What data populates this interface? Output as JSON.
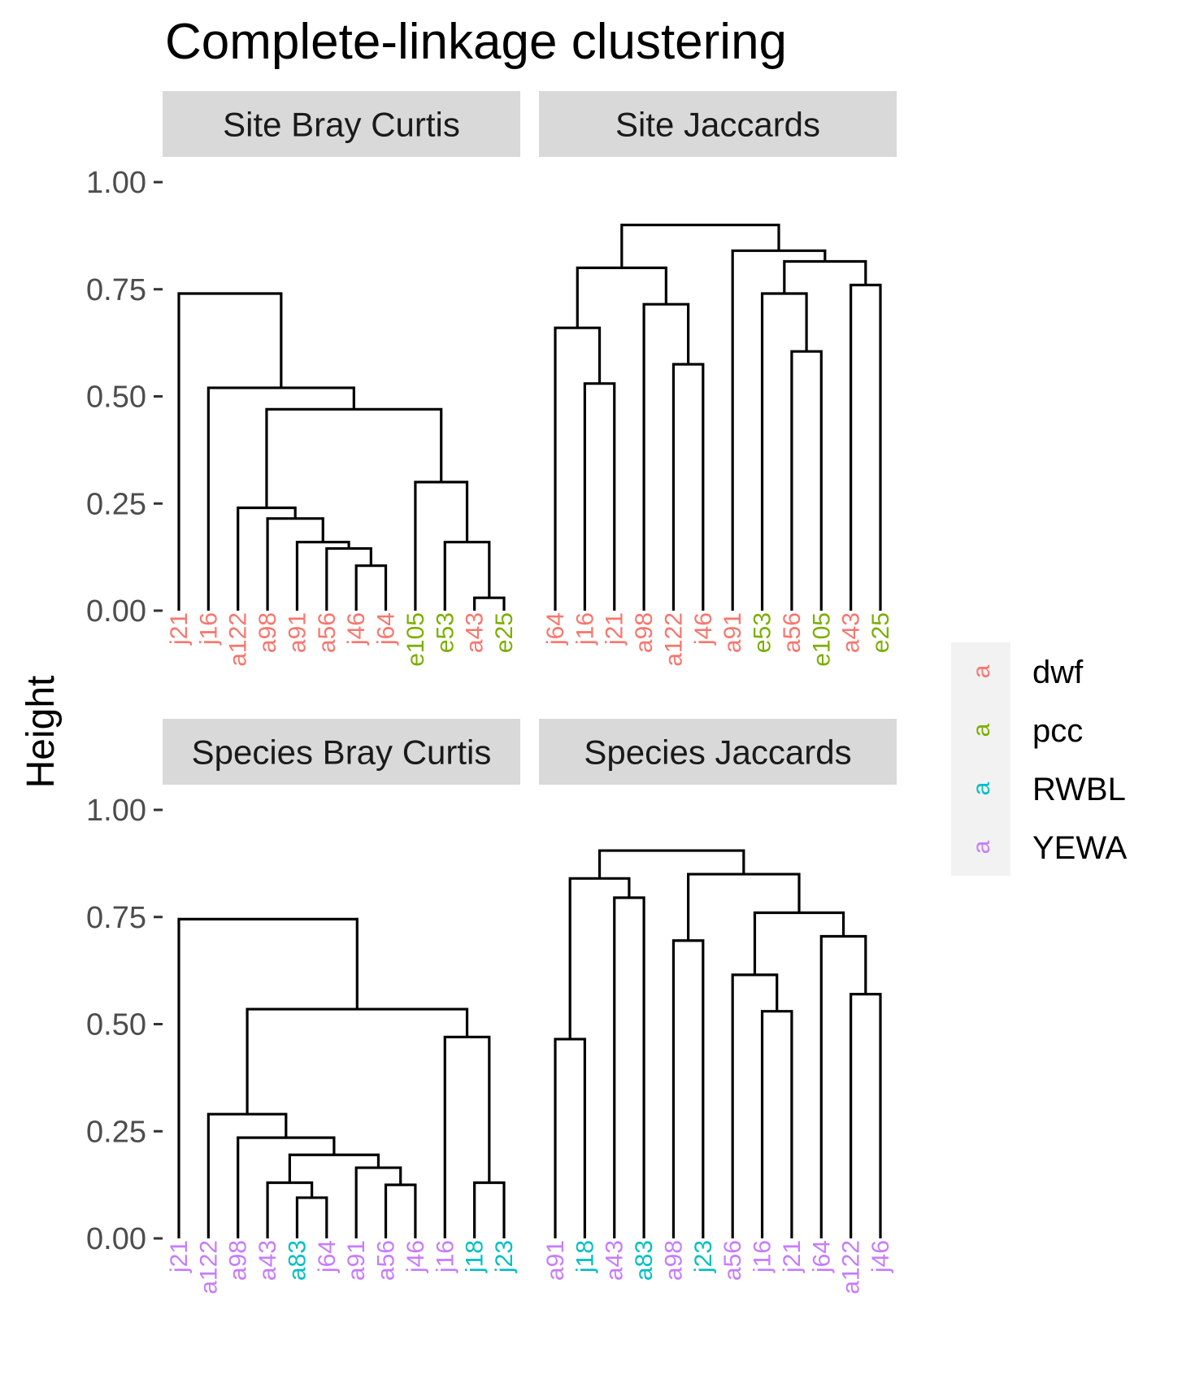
{
  "title": "Complete-linkage clustering",
  "ylabel": "Height",
  "colors": {
    "dwf": "#F8766D",
    "pcc": "#7CAE00",
    "RWBL": "#00BFC4",
    "YEWA": "#C77CFF"
  },
  "legend": {
    "key_glyph": "a",
    "entries": [
      {
        "label": "dwf",
        "color": "#F8766D"
      },
      {
        "label": "pcc",
        "color": "#7CAE00"
      },
      {
        "label": "RWBL",
        "color": "#00BFC4"
      },
      {
        "label": "YEWA",
        "color": "#C77CFF"
      }
    ]
  },
  "chart_data": [
    {
      "type": "dendrogram",
      "panel": "Site Bray Curtis",
      "ylim": [
        0,
        1
      ],
      "yticks": [
        0,
        0.25,
        0.5,
        0.75,
        1
      ],
      "ytick_labels": [
        "0.00",
        "0.25",
        "0.50",
        "0.75",
        "1.00"
      ],
      "leaves": [
        {
          "label": "j21",
          "group": "dwf"
        },
        {
          "label": "j16",
          "group": "dwf"
        },
        {
          "label": "a122",
          "group": "dwf"
        },
        {
          "label": "a98",
          "group": "dwf"
        },
        {
          "label": "a91",
          "group": "dwf"
        },
        {
          "label": "a56",
          "group": "dwf"
        },
        {
          "label": "j46",
          "group": "dwf"
        },
        {
          "label": "j64",
          "group": "dwf"
        },
        {
          "label": "e105",
          "group": "pcc"
        },
        {
          "label": "e53",
          "group": "pcc"
        },
        {
          "label": "a43",
          "group": "dwf"
        },
        {
          "label": "e25",
          "group": "pcc"
        }
      ],
      "merges": [
        {
          "a": "L10",
          "b": "L11",
          "h": 0.03
        },
        {
          "a": "L6",
          "b": "L7",
          "h": 0.105
        },
        {
          "a": "L5",
          "b": "M2",
          "h": 0.145
        },
        {
          "a": "L4",
          "b": "M3",
          "h": 0.16
        },
        {
          "a": "L9",
          "b": "M1",
          "h": 0.16
        },
        {
          "a": "L3",
          "b": "M4",
          "h": 0.215
        },
        {
          "a": "L2",
          "b": "M6",
          "h": 0.24
        },
        {
          "a": "L8",
          "b": "M5",
          "h": 0.3
        },
        {
          "a": "M7",
          "b": "M8",
          "h": 0.47
        },
        {
          "a": "L1",
          "b": "M9",
          "h": 0.52
        },
        {
          "a": "L0",
          "b": "M10",
          "h": 0.74
        }
      ]
    },
    {
      "type": "dendrogram",
      "panel": "Site Jaccards",
      "ylim": [
        0,
        1
      ],
      "yticks": [
        0,
        0.25,
        0.5,
        0.75,
        1
      ],
      "ytick_labels": [
        "0.00",
        "0.25",
        "0.50",
        "0.75",
        "1.00"
      ],
      "leaves": [
        {
          "label": "j64",
          "group": "dwf"
        },
        {
          "label": "j16",
          "group": "dwf"
        },
        {
          "label": "j21",
          "group": "dwf"
        },
        {
          "label": "a98",
          "group": "dwf"
        },
        {
          "label": "a122",
          "group": "dwf"
        },
        {
          "label": "j46",
          "group": "dwf"
        },
        {
          "label": "a91",
          "group": "dwf"
        },
        {
          "label": "e53",
          "group": "pcc"
        },
        {
          "label": "a56",
          "group": "dwf"
        },
        {
          "label": "e105",
          "group": "pcc"
        },
        {
          "label": "a43",
          "group": "dwf"
        },
        {
          "label": "e25",
          "group": "pcc"
        }
      ],
      "merges": [
        {
          "a": "L1",
          "b": "L2",
          "h": 0.53
        },
        {
          "a": "L4",
          "b": "L5",
          "h": 0.575
        },
        {
          "a": "L8",
          "b": "L9",
          "h": 0.605
        },
        {
          "a": "L0",
          "b": "M1",
          "h": 0.66
        },
        {
          "a": "L3",
          "b": "M2",
          "h": 0.715
        },
        {
          "a": "L7",
          "b": "M3",
          "h": 0.74
        },
        {
          "a": "L10",
          "b": "L11",
          "h": 0.76
        },
        {
          "a": "M4",
          "b": "M5",
          "h": 0.8
        },
        {
          "a": "M6",
          "b": "M7",
          "h": 0.815
        },
        {
          "a": "L6",
          "b": "M9",
          "h": 0.84
        },
        {
          "a": "M8",
          "b": "M10",
          "h": 0.9
        }
      ]
    },
    {
      "type": "dendrogram",
      "panel": "Species Bray Curtis",
      "ylim": [
        0,
        1
      ],
      "yticks": [
        0,
        0.25,
        0.5,
        0.75,
        1
      ],
      "ytick_labels": [
        "0.00",
        "0.25",
        "0.50",
        "0.75",
        "1.00"
      ],
      "leaves": [
        {
          "label": "j21",
          "group": "YEWA"
        },
        {
          "label": "a122",
          "group": "YEWA"
        },
        {
          "label": "a98",
          "group": "YEWA"
        },
        {
          "label": "a43",
          "group": "YEWA"
        },
        {
          "label": "a83",
          "group": "RWBL"
        },
        {
          "label": "j64",
          "group": "YEWA"
        },
        {
          "label": "a91",
          "group": "YEWA"
        },
        {
          "label": "a56",
          "group": "YEWA"
        },
        {
          "label": "j46",
          "group": "YEWA"
        },
        {
          "label": "j16",
          "group": "YEWA"
        },
        {
          "label": "j18",
          "group": "RWBL"
        },
        {
          "label": "j23",
          "group": "RWBL"
        }
      ],
      "merges": [
        {
          "a": "L4",
          "b": "L5",
          "h": 0.095
        },
        {
          "a": "L7",
          "b": "L8",
          "h": 0.125
        },
        {
          "a": "L3",
          "b": "M1",
          "h": 0.13
        },
        {
          "a": "L10",
          "b": "L11",
          "h": 0.13
        },
        {
          "a": "L6",
          "b": "M2",
          "h": 0.165
        },
        {
          "a": "M3",
          "b": "M5",
          "h": 0.195
        },
        {
          "a": "L2",
          "b": "M6",
          "h": 0.235
        },
        {
          "a": "L1",
          "b": "M7",
          "h": 0.29
        },
        {
          "a": "L9",
          "b": "M4",
          "h": 0.47
        },
        {
          "a": "M8",
          "b": "M9",
          "h": 0.535
        },
        {
          "a": "L0",
          "b": "M10",
          "h": 0.745
        }
      ]
    },
    {
      "type": "dendrogram",
      "panel": "Species Jaccards",
      "ylim": [
        0,
        1
      ],
      "yticks": [
        0,
        0.25,
        0.5,
        0.75,
        1
      ],
      "ytick_labels": [
        "0.00",
        "0.25",
        "0.50",
        "0.75",
        "1.00"
      ],
      "leaves": [
        {
          "label": "a91",
          "group": "YEWA"
        },
        {
          "label": "j18",
          "group": "RWBL"
        },
        {
          "label": "a43",
          "group": "YEWA"
        },
        {
          "label": "a83",
          "group": "RWBL"
        },
        {
          "label": "a98",
          "group": "YEWA"
        },
        {
          "label": "j23",
          "group": "RWBL"
        },
        {
          "label": "a56",
          "group": "YEWA"
        },
        {
          "label": "j16",
          "group": "YEWA"
        },
        {
          "label": "j21",
          "group": "YEWA"
        },
        {
          "label": "j64",
          "group": "YEWA"
        },
        {
          "label": "a122",
          "group": "YEWA"
        },
        {
          "label": "j46",
          "group": "YEWA"
        }
      ],
      "merges": [
        {
          "a": "L0",
          "b": "L1",
          "h": 0.465
        },
        {
          "a": "L7",
          "b": "L8",
          "h": 0.53
        },
        {
          "a": "L10",
          "b": "L11",
          "h": 0.57
        },
        {
          "a": "L6",
          "b": "M2",
          "h": 0.615
        },
        {
          "a": "L4",
          "b": "L5",
          "h": 0.695
        },
        {
          "a": "L9",
          "b": "M3",
          "h": 0.705
        },
        {
          "a": "M4",
          "b": "M6",
          "h": 0.76
        },
        {
          "a": "L2",
          "b": "L3",
          "h": 0.795
        },
        {
          "a": "M1",
          "b": "M8",
          "h": 0.84
        },
        {
          "a": "M5",
          "b": "M7",
          "h": 0.85
        },
        {
          "a": "M9",
          "b": "M10",
          "h": 0.905
        }
      ]
    }
  ]
}
